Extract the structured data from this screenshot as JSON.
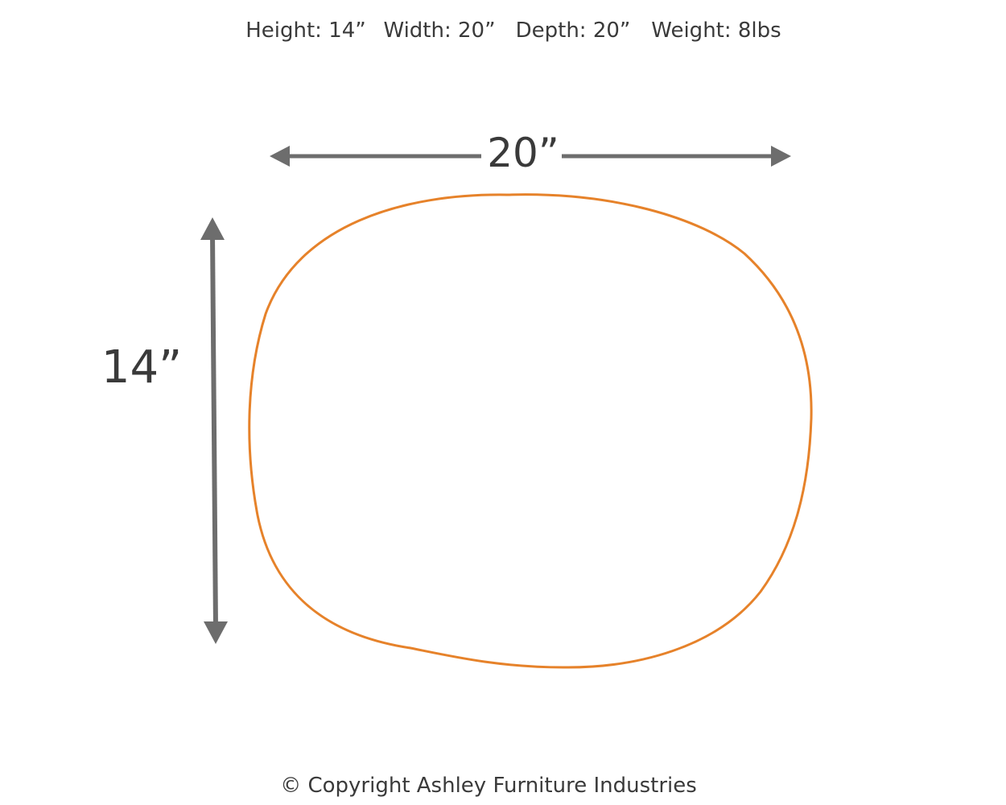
{
  "header": {
    "specs": [
      "Height: 14”",
      "Width: 20”",
      "Depth: 20”",
      "Weight: 8lbs"
    ]
  },
  "dimensions": {
    "width_label": "20”",
    "height_label": "14”"
  },
  "footer": {
    "copyright": "© Copyright Ashley Furniture Industries"
  }
}
